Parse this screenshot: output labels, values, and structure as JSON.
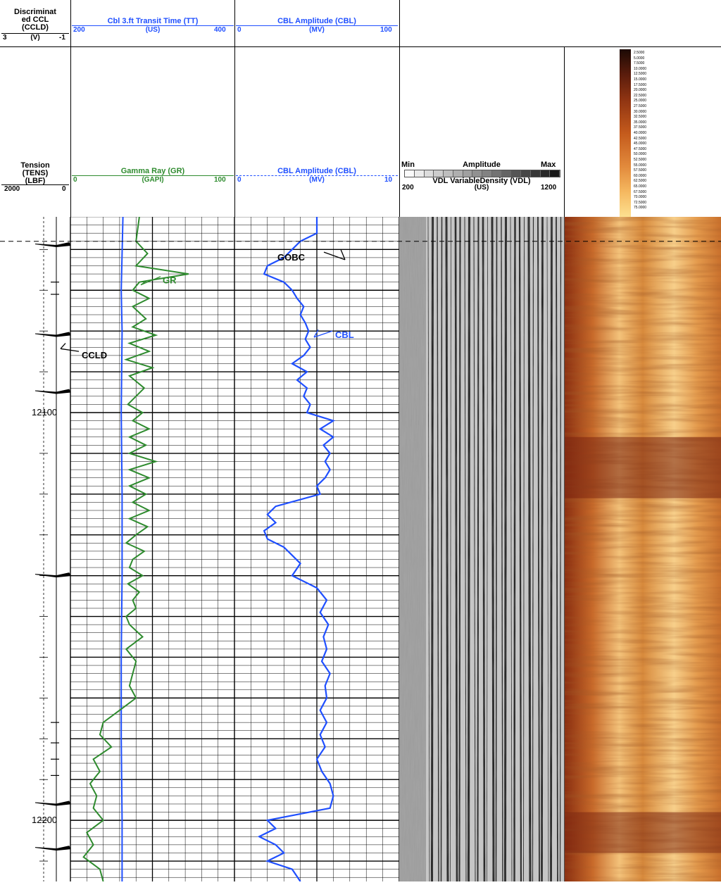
{
  "header": {
    "ccl": {
      "lines": [
        "Discriminat",
        "ed CCL",
        "(CCLD)"
      ],
      "unit": "(V)",
      "scale_left": "3",
      "scale_right": "-1"
    },
    "tt": {
      "title": "Cbl 3.ft Transit Time (TT)",
      "unit": "(US)",
      "left": "200",
      "right": "400"
    },
    "cbl_top": {
      "title": "CBL Amplitude (CBL)",
      "unit": "(MV)",
      "left": "0",
      "right": "100"
    },
    "tension": {
      "lines": [
        "Tension",
        "(TENS)",
        "(LBF)"
      ],
      "left": "2000",
      "right": "0"
    },
    "gr": {
      "title": "Gamma Ray (GR)",
      "unit": "(GAPI)",
      "left": "0",
      "right": "100"
    },
    "cbl_low": {
      "title": "CBL Amplitude (CBL)",
      "unit": "(MV)",
      "left": "0",
      "right": "10"
    },
    "vdl": {
      "min": "Min",
      "mid": "Amplitude",
      "max": "Max",
      "title": "VDL VariableDensity (VDL)",
      "unit": "(US)",
      "left": "200",
      "right": "1200"
    },
    "colorbar_labels": [
      "2.5000",
      "5.0000",
      "7.5000",
      "10.0000",
      "12.5000",
      "15.0000",
      "17.5000",
      "20.0000",
      "22.5000",
      "25.0000",
      "27.5000",
      "30.0000",
      "32.5000",
      "35.0000",
      "37.5000",
      "40.0000",
      "42.5000",
      "45.0000",
      "47.5000",
      "50.0000",
      "52.5000",
      "55.0000",
      "57.5000",
      "60.0000",
      "62.5000",
      "65.0000",
      "67.5000",
      "70.0000",
      "72.5000",
      "75.0000"
    ]
  },
  "annotations": {
    "gr": "GR",
    "cbl": "CBL",
    "ccld": "CCLD",
    "gobc": "GOBC"
  },
  "colors": {
    "gr": "#2e8b2e",
    "tt": "#1f4fff",
    "cbl": "#1f4fff",
    "grid": "#000000"
  },
  "chart_data": {
    "type": "line",
    "depth_unit": "ft",
    "depth_range": [
      12052,
      12215
    ],
    "depth_labels": [
      "12100",
      "12200"
    ],
    "series": [
      {
        "name": "GR",
        "unit": "GAPI",
        "scale": [
          0,
          100
        ],
        "depth": [
          12052,
          12058,
          12061,
          12064,
          12066,
          12068,
          12070,
          12072,
          12074,
          12077,
          12079,
          12081,
          12083,
          12085,
          12087,
          12089,
          12091,
          12094,
          12096,
          12098,
          12100,
          12102,
          12104,
          12106,
          12108,
          12110,
          12112,
          12114,
          12116,
          12118,
          12120,
          12122,
          12124,
          12126,
          12128,
          12130,
          12132,
          12134,
          12136,
          12138,
          12140,
          12142,
          12144,
          12146,
          12148,
          12150,
          12152,
          12155,
          12158,
          12161,
          12164,
          12167,
          12170,
          12173,
          12176,
          12179,
          12182,
          12185,
          12188,
          12191,
          12194,
          12197,
          12200,
          12203,
          12206,
          12209,
          12212,
          12215
        ],
        "values": [
          42,
          40,
          47,
          40,
          72,
          42,
          38,
          48,
          38,
          46,
          38,
          52,
          36,
          48,
          34,
          50,
          36,
          45,
          40,
          35,
          44,
          38,
          48,
          36,
          46,
          36,
          52,
          36,
          48,
          36,
          46,
          38,
          48,
          36,
          47,
          40,
          34,
          45,
          38,
          36,
          44,
          35,
          42,
          38,
          40,
          34,
          36,
          44,
          34,
          40,
          38,
          36,
          40,
          30,
          20,
          18,
          25,
          14,
          18,
          12,
          16,
          14,
          20,
          10,
          14,
          8,
          18,
          20
        ]
      },
      {
        "name": "TT",
        "unit": "US",
        "scale": [
          200,
          400
        ],
        "depth": [
          12052,
          12070,
          12080,
          12100,
          12120,
          12140,
          12160,
          12180,
          12200,
          12215
        ],
        "values": [
          264,
          262,
          263,
          262,
          263,
          263,
          262,
          262,
          263,
          263
        ]
      },
      {
        "name": "CBL",
        "unit": "MV",
        "scale": [
          0,
          10
        ],
        "depth": [
          12052,
          12056,
          12058,
          12062,
          12064,
          12066,
          12068,
          12070,
          12072,
          12074,
          12076,
          12078,
          12080,
          12082,
          12084,
          12086,
          12088,
          12090,
          12092,
          12094,
          12096,
          12098,
          12100,
          12102,
          12104,
          12106,
          12108,
          12110,
          12112,
          12114,
          12116,
          12118,
          12120,
          12123,
          12125,
          12127,
          12129,
          12131,
          12133,
          12135,
          12137,
          12140,
          12143,
          12146,
          12149,
          12152,
          12155,
          12158,
          12161,
          12164,
          12167,
          12170,
          12173,
          12176,
          12179,
          12182,
          12185,
          12188,
          12191,
          12194,
          12197,
          12200,
          12202,
          12204,
          12206,
          12208,
          12210,
          12212,
          12215
        ],
        "values": [
          5.0,
          5.0,
          4.0,
          3.0,
          2.0,
          1.8,
          3.0,
          3.5,
          3.8,
          4.2,
          4.0,
          4.3,
          4.5,
          4.3,
          4.6,
          4.2,
          3.5,
          4.4,
          3.8,
          4.4,
          4.2,
          4.6,
          4.4,
          6.0,
          5.2,
          6.0,
          5.4,
          5.8,
          5.5,
          5.8,
          5.5,
          5.0,
          5.2,
          2.5,
          2.0,
          2.5,
          1.8,
          2.0,
          3.0,
          3.5,
          4.0,
          3.5,
          5.0,
          5.6,
          5.2,
          5.7,
          5.4,
          5.6,
          5.3,
          5.8,
          5.5,
          5.6,
          5.2,
          5.6,
          5.2,
          5.5,
          5.0,
          5.3,
          5.8,
          6.0,
          5.8,
          2.0,
          2.5,
          1.5,
          2.5,
          3.0,
          2.0,
          3.5,
          4.0
        ]
      },
      {
        "name": "CCLD",
        "unit": "V",
        "scale": [
          3,
          -1
        ],
        "kick_depths": [
          12059,
          12081,
          12095,
          12140,
          12196,
          12207
        ],
        "tick_depths": [
          12068,
          12071,
          12176,
          12181,
          12185,
          12189
        ]
      }
    ]
  }
}
